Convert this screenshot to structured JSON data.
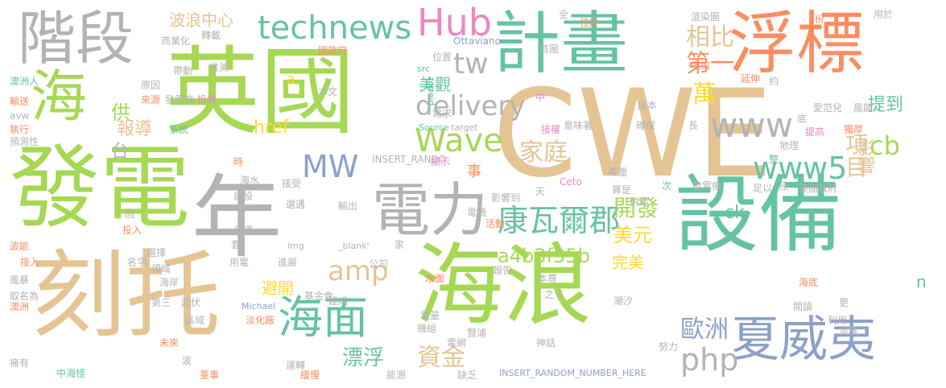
{
  "palette": [
    "#66c2a5",
    "#fc8d62",
    "#8da0cb",
    "#e78ac3",
    "#a6d854",
    "#ffd92f",
    "#e5c494",
    "#b3b3b3"
  ],
  "words": [
    {
      "text": "CWE",
      "color": "#e5c494"
    },
    {
      "text": "英國",
      "color": "#a6d854"
    },
    {
      "text": "海浪",
      "color": "#a6d854"
    },
    {
      "text": "設備",
      "color": "#66c2a5"
    },
    {
      "text": "刻托",
      "color": "#e5c494"
    },
    {
      "text": "發電",
      "color": "#a6d854"
    },
    {
      "text": "年",
      "color": "#b3b3b3"
    },
    {
      "text": "計畫",
      "color": "#66c2a5"
    },
    {
      "text": "浮標",
      "color": "#fc8d62"
    },
    {
      "text": "階段",
      "color": "#b3b3b3"
    },
    {
      "text": "電力",
      "color": "#b3b3b3"
    },
    {
      "text": "海",
      "color": "#a6d854"
    },
    {
      "text": "夏威夷",
      "color": "#8da0cb"
    },
    {
      "text": "海面",
      "color": "#66c2a5"
    },
    {
      "text": "technews",
      "color": "#66c2a5"
    },
    {
      "text": "Hub",
      "color": "#e78ac3"
    },
    {
      "text": "康瓦爾郡",
      "color": "#66c2a5"
    },
    {
      "text": "Wave",
      "color": "#a6d854"
    },
    {
      "text": "www",
      "color": "#b3b3b3"
    },
    {
      "text": "www5",
      "color": "#66c2a5"
    },
    {
      "text": "delivery",
      "color": "#b3b3b3"
    },
    {
      "text": "MW",
      "color": "#8da0cb"
    },
    {
      "text": "php",
      "color": "#b3b3b3"
    },
    {
      "text": "amp",
      "color": "#e5c494"
    },
    {
      "text": "相比",
      "color": "#e5c494"
    },
    {
      "text": "第一",
      "color": "#fc8d62"
    },
    {
      "text": "家庭",
      "color": "#e5c494"
    },
    {
      "text": "tw",
      "color": "#b3b3b3"
    },
    {
      "text": "萬",
      "color": "#ffd92f"
    },
    {
      "text": "cb",
      "color": "#a6d854"
    },
    {
      "text": "項目",
      "color": "#e5c494"
    },
    {
      "text": "開發",
      "color": "#a6d854"
    },
    {
      "text": "美元",
      "color": "#ffd92f"
    },
    {
      "text": "歐洲",
      "color": "#8da0cb"
    },
    {
      "text": "資金",
      "color": "#e5c494"
    },
    {
      "text": "漂浮",
      "color": "#66c2a5"
    },
    {
      "text": "a4b3f35b",
      "color": "#a6d854"
    },
    {
      "text": "提到",
      "color": "#66c2a5"
    },
    {
      "text": "影響",
      "color": "#e5c494"
    },
    {
      "text": "美觀",
      "color": "#66c2a5"
    },
    {
      "text": "供",
      "color": "#a6d854"
    },
    {
      "text": "台",
      "color": "#b3b3b3"
    },
    {
      "text": "報導",
      "color": "#e5c494"
    },
    {
      "text": "波浪中心",
      "color": "#e5c494"
    },
    {
      "text": "href",
      "color": "#ffd92f"
    },
    {
      "text": "ck",
      "color": "#66c2a5"
    },
    {
      "text": "a",
      "color": "#ffd92f"
    },
    {
      "text": "事",
      "color": "#fc8d62"
    },
    {
      "text": "完美",
      "color": "#ffd92f"
    },
    {
      "text": "避開",
      "color": "#ffd92f"
    },
    {
      "text": "n",
      "color": "#66c2a5"
    },
    {
      "text": "INSERT_RANDOM_NUMBER_HERE",
      "color": "#8da0cb"
    },
    {
      "text": "Ottaviano",
      "color": "#8da0cb"
    },
    {
      "text": "Source",
      "color": "#66c2a5"
    },
    {
      "text": "target",
      "color": "#b3b3b3"
    },
    {
      "text": "zoneid",
      "color": "#66c2a5"
    },
    {
      "text": "INSERT_RANDO",
      "color": "#b3b3b3"
    },
    {
      "text": "Ceto",
      "color": "#e78ac3"
    },
    {
      "text": "Michael",
      "color": "#8da0cb"
    },
    {
      "text": "_blank'",
      "color": "#b3b3b3"
    },
    {
      "text": "img",
      "color": "#b3b3b3"
    },
    {
      "text": "src",
      "color": "#66c2a5"
    },
    {
      "text": "澳洲人",
      "color": "#66c2a5"
    },
    {
      "text": "輸送",
      "color": "#fc8d62"
    },
    {
      "text": "avw",
      "color": "#b3b3b3"
    },
    {
      "text": "執行",
      "color": "#fc8d62"
    },
    {
      "text": "預測性",
      "color": "#b3b3b3"
    },
    {
      "text": "商業化",
      "color": "#b3b3b3"
    },
    {
      "text": "轉載",
      "color": "#b3b3b3"
    },
    {
      "text": "帶動",
      "color": "#b3b3b3"
    },
    {
      "text": "原因",
      "color": "#b3b3b3"
    },
    {
      "text": "來源",
      "color": "#fc8d62"
    },
    {
      "text": "系統",
      "color": "#66c2a5"
    },
    {
      "text": "發電廠",
      "color": "#b3b3b3"
    },
    {
      "text": "投資",
      "color": "#e78ac3"
    },
    {
      "text": "唯美",
      "color": "#b3b3b3"
    },
    {
      "text": "國政府",
      "color": "#fc8d62"
    },
    {
      "text": "本文",
      "color": "#b3b3b3"
    },
    {
      "text": "需求",
      "color": "#b3b3b3"
    },
    {
      "text": "位置",
      "color": "#b3b3b3"
    },
    {
      "text": "首圖",
      "color": "#b3b3b3"
    },
    {
      "text": "渲染圖",
      "color": "#b3b3b3"
    },
    {
      "text": "增加",
      "color": "#fc8d62"
    },
    {
      "text": "延伸",
      "color": "#fc8d62"
    },
    {
      "text": "用於",
      "color": "#b3b3b3"
    },
    {
      "text": "約",
      "color": "#b3b3b3"
    },
    {
      "text": "份",
      "color": "#fc8d62"
    },
    {
      "text": "全",
      "color": "#b3b3b3"
    },
    {
      "text": "位於",
      "color": "#fc8d62"
    },
    {
      "text": "中",
      "color": "#e78ac3"
    },
    {
      "text": "成本",
      "color": "#b3b3b3"
    },
    {
      "text": "愛范兒",
      "color": "#b3b3b3"
    },
    {
      "text": "風能",
      "color": "#b3b3b3"
    },
    {
      "text": "確保",
      "color": "#b3b3b3"
    },
    {
      "text": "長",
      "color": "#b3b3b3"
    },
    {
      "text": "底",
      "color": "#b3b3b3"
    },
    {
      "text": "提高",
      "color": "#e78ac3"
    },
    {
      "text": "獨厚",
      "color": "#fc8d62"
    },
    {
      "text": "地理",
      "color": "#b3b3b3"
    },
    {
      "text": "整",
      "color": "#66c2a5"
    },
    {
      "text": "意味著",
      "color": "#b3b3b3"
    },
    {
      "text": "接權",
      "color": "#e78ac3"
    },
    {
      "text": "顯示",
      "color": "#e78ac3"
    },
    {
      "text": "時",
      "color": "#fc8d62"
    },
    {
      "text": "海水",
      "color": "#b3b3b3"
    },
    {
      "text": "建設",
      "color": "#b3b3b3"
    },
    {
      "text": "接受",
      "color": "#b3b3b3"
    },
    {
      "text": "希臘",
      "color": "#b3b3b3"
    },
    {
      "text": "影響到",
      "color": "#b3b3b3"
    },
    {
      "text": "天",
      "color": "#b3b3b3"
    },
    {
      "text": "算是",
      "color": "#b3b3b3"
    },
    {
      "text": "次",
      "color": "#66c2a5"
    },
    {
      "text": "發電機",
      "color": "#b3b3b3"
    },
    {
      "text": "足以",
      "color": "#b3b3b3"
    },
    {
      "text": "座",
      "color": "#b3b3b3"
    },
    {
      "text": "英國政府",
      "color": "#b3b3b3"
    },
    {
      "text": "供電",
      "color": "#b3b3b3"
    },
    {
      "text": "選遇",
      "color": "#b3b3b3"
    },
    {
      "text": "輸出",
      "color": "#b3b3b3"
    },
    {
      "text": "電纜",
      "color": "#b3b3b3"
    },
    {
      "text": "活動",
      "color": "#fc8d62"
    },
    {
      "text": "回",
      "color": "#b3b3b3"
    },
    {
      "text": "投入",
      "color": "#fc8d62"
    },
    {
      "text": "幸運",
      "color": "#b3b3b3"
    },
    {
      "text": "套",
      "color": "#b3b3b3"
    },
    {
      "text": "波能",
      "color": "#fc8d62"
    },
    {
      "text": "選擇",
      "color": "#b3b3b3"
    },
    {
      "text": "接入",
      "color": "#fc8d62"
    },
    {
      "text": "名字",
      "color": "#b3b3b3"
    },
    {
      "text": "用電",
      "color": "#b3b3b3"
    },
    {
      "text": "進展",
      "color": "#b3b3b3"
    },
    {
      "text": "公司",
      "color": "#b3b3b3"
    },
    {
      "text": "家",
      "color": "#b3b3b3"
    },
    {
      "text": "報告",
      "color": "#b3b3b3"
    },
    {
      "text": "水面",
      "color": "#fc8d62"
    },
    {
      "text": "本尊",
      "color": "#b3b3b3"
    },
    {
      "text": "領域",
      "color": "#b3b3b3"
    },
    {
      "text": "風暴",
      "color": "#b3b3b3"
    },
    {
      "text": "海岸",
      "color": "#b3b3b3"
    },
    {
      "text": "取名為",
      "color": "#b3b3b3"
    },
    {
      "text": "第三",
      "color": "#b3b3b3"
    },
    {
      "text": "起伏",
      "color": "#b3b3b3"
    },
    {
      "text": "基金會",
      "color": "#b3b3b3"
    },
    {
      "text": "建成",
      "color": "#b3b3b3"
    },
    {
      "text": "之下",
      "color": "#b3b3b3"
    },
    {
      "text": "潮汐",
      "color": "#b3b3b3"
    },
    {
      "text": "海底",
      "color": "#fc8d62"
    },
    {
      "text": "閱讀",
      "color": "#b3b3b3"
    },
    {
      "text": "更",
      "color": "#b3b3b3"
    },
    {
      "text": "利用",
      "color": "#b3b3b3"
    },
    {
      "text": "發展",
      "color": "#b3b3b3"
    },
    {
      "text": "澳洲",
      "color": "#fc8d62"
    },
    {
      "text": "區域",
      "color": "#b3b3b3"
    },
    {
      "text": "淡化廠",
      "color": "#fc8d62"
    },
    {
      "text": "電量",
      "color": "#b3b3b3"
    },
    {
      "text": "機組",
      "color": "#b3b3b3"
    },
    {
      "text": "賢浦",
      "color": "#b3b3b3"
    },
    {
      "text": "未來",
      "color": "#fc8d62"
    },
    {
      "text": "電網",
      "color": "#b3b3b3"
    },
    {
      "text": "神話",
      "color": "#b3b3b3"
    },
    {
      "text": "努力",
      "color": "#b3b3b3"
    },
    {
      "text": "擁有",
      "color": "#b3b3b3"
    },
    {
      "text": "中海怪",
      "color": "#66c2a5"
    },
    {
      "text": "波",
      "color": "#b3b3b3"
    },
    {
      "text": "董事",
      "color": "#fc8d62"
    },
    {
      "text": "運轉",
      "color": "#b3b3b3"
    },
    {
      "text": "緩慢",
      "color": "#fc8d62"
    },
    {
      "text": "能源",
      "color": "#b3b3b3"
    },
    {
      "text": "缺乏",
      "color": "#b3b3b3"
    }
  ]
}
